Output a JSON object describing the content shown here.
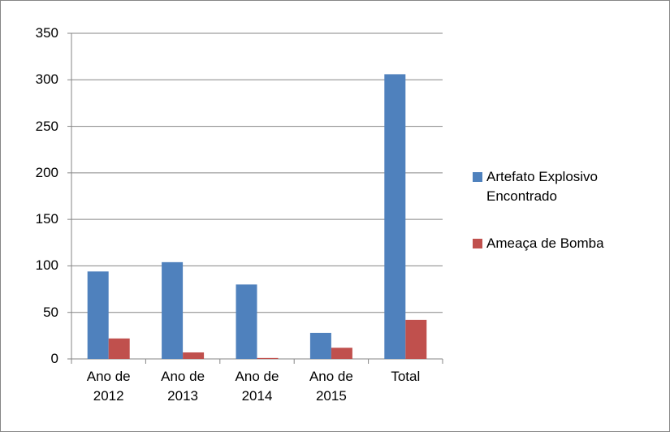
{
  "chart_data": {
    "type": "bar",
    "categories": [
      "Ano de 2012",
      "Ano de 2013",
      "Ano de 2014",
      "Ano de 2015",
      "Total"
    ],
    "series": [
      {
        "name": "Artefato Explosivo Encontrado",
        "color": "#4f81bd",
        "values": [
          94,
          104,
          80,
          28,
          306
        ]
      },
      {
        "name": "Ameaça de Bomba",
        "color": "#c0504d",
        "values": [
          22,
          7,
          1,
          12,
          42
        ]
      }
    ],
    "ylim": [
      0,
      350
    ],
    "yticks": [
      0,
      50,
      100,
      150,
      200,
      250,
      300,
      350
    ],
    "grid": true,
    "legend": "right"
  }
}
